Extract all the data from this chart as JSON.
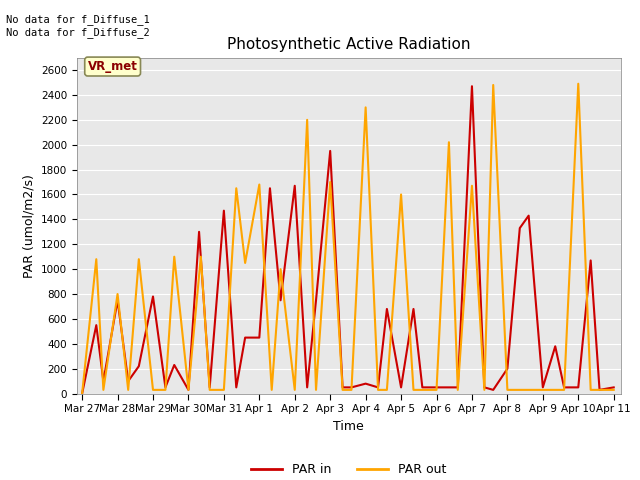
{
  "title": "Photosynthetic Active Radiation",
  "xlabel": "Time",
  "ylabel": "PAR (umol/m2/s)",
  "ylim": [
    0,
    2700
  ],
  "yticks": [
    0,
    200,
    400,
    600,
    800,
    1000,
    1200,
    1400,
    1600,
    1800,
    2000,
    2200,
    2400,
    2600
  ],
  "annotation_top": "No data for f_Diffuse_1\nNo data for f_Diffuse_2",
  "box_label": "VR_met",
  "legend_labels": [
    "PAR in",
    "PAR out"
  ],
  "par_in_color": "#cc0000",
  "par_out_color": "#ffa500",
  "background_color": "#e8e8e8",
  "x_labels": [
    "Mar 27",
    "Mar 28",
    "Mar 29",
    "Mar 30",
    "Mar 31",
    "Apr 1",
    "Apr 2",
    "Apr 3",
    "Apr 4",
    "Apr 5",
    "Apr 6",
    "Apr 7",
    "Apr 8",
    "Apr 9",
    "Apr 10",
    "Apr 11"
  ],
  "par_in_x": [
    0,
    0.4,
    0.6,
    1.0,
    1.3,
    1.6,
    2.0,
    2.35,
    2.6,
    3.0,
    3.3,
    3.6,
    4.0,
    4.35,
    4.6,
    5.0,
    5.3,
    5.6,
    6.0,
    6.35,
    6.6,
    7.0,
    7.35,
    7.6,
    8.0,
    8.35,
    8.6,
    9.0,
    9.35,
    9.6,
    10.0,
    10.35,
    10.6,
    11.0,
    11.35,
    11.6,
    12.0,
    12.35,
    12.6,
    13.0,
    13.35,
    13.6,
    14.0,
    14.35,
    14.6,
    15.0
  ],
  "par_in_y": [
    0,
    550,
    100,
    750,
    100,
    220,
    780,
    50,
    230,
    30,
    1300,
    50,
    1470,
    50,
    450,
    450,
    1650,
    750,
    1670,
    50,
    750,
    1950,
    50,
    50,
    80,
    50,
    680,
    50,
    680,
    50,
    50,
    50,
    50,
    2470,
    50,
    30,
    200,
    1330,
    1430,
    50,
    380,
    50,
    50,
    1070,
    30,
    50
  ],
  "par_out_x": [
    0,
    0.4,
    0.6,
    1.0,
    1.3,
    1.6,
    2.0,
    2.35,
    2.6,
    3.0,
    3.35,
    3.6,
    4.0,
    4.35,
    4.6,
    5.0,
    5.35,
    5.6,
    6.0,
    6.35,
    6.6,
    7.0,
    7.35,
    7.6,
    8.0,
    8.35,
    8.6,
    9.0,
    9.35,
    9.6,
    10.0,
    10.35,
    10.6,
    11.0,
    11.35,
    11.6,
    12.0,
    12.35,
    12.6,
    13.0,
    13.35,
    13.6,
    14.0,
    14.35,
    14.6,
    15.0
  ],
  "par_out_y": [
    0,
    1080,
    30,
    800,
    30,
    1080,
    30,
    30,
    1100,
    30,
    1100,
    30,
    30,
    1650,
    1050,
    1680,
    30,
    1000,
    30,
    2200,
    30,
    1700,
    30,
    30,
    2300,
    30,
    30,
    1600,
    30,
    30,
    30,
    2020,
    30,
    1670,
    30,
    2480,
    30,
    30,
    30,
    30,
    30,
    30,
    2490,
    30,
    30,
    30
  ]
}
